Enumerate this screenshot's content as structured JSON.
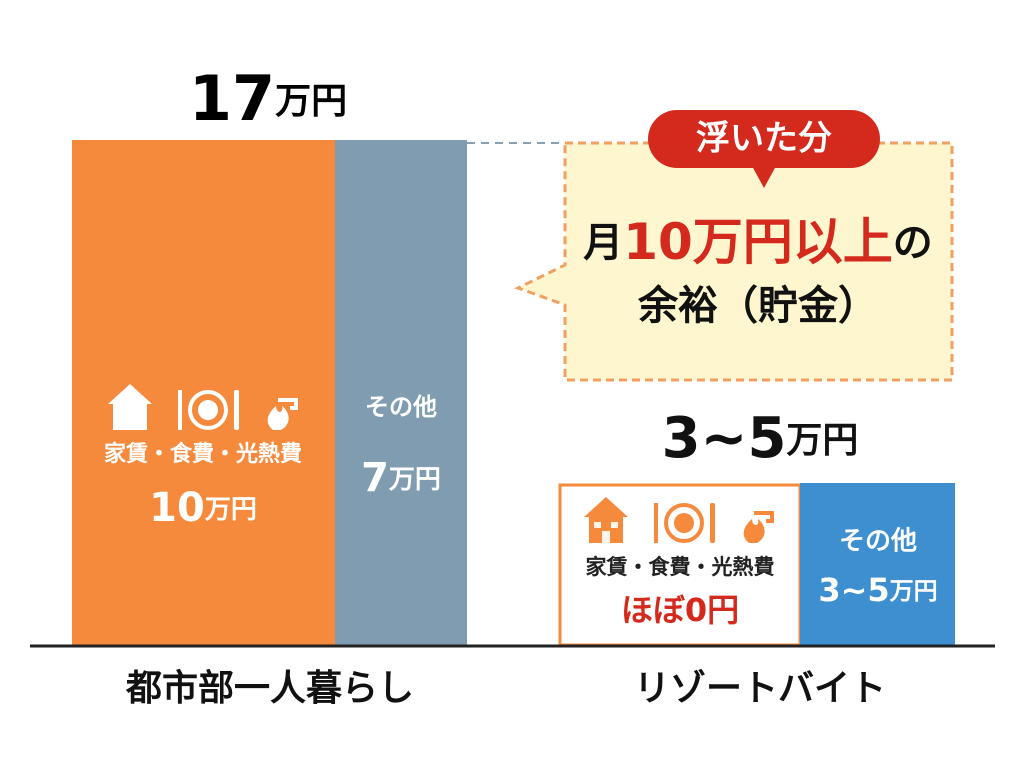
{
  "left": {
    "total_number": "17",
    "total_unit": "万円",
    "main": {
      "label": "家賃・食費・光熱費",
      "amount_number": "10",
      "amount_unit": "万円"
    },
    "other": {
      "label": "その他",
      "amount_number": "7",
      "amount_unit": "万円"
    },
    "category": "都市部一人暮らし"
  },
  "right": {
    "total_number": "3~5",
    "total_unit": "万円",
    "main": {
      "label": "家賃・食費・光熱費",
      "amount": "ほぼ0円"
    },
    "other": {
      "label": "その他",
      "amount_number": "3~5",
      "amount_unit": "万円"
    },
    "category": "リゾートバイト"
  },
  "callout": {
    "tag": "浮いた分",
    "line1_prefix": "月",
    "line1_amount": "10万円以上",
    "line1_suffix": "の",
    "line2": "余裕（貯金）"
  }
}
